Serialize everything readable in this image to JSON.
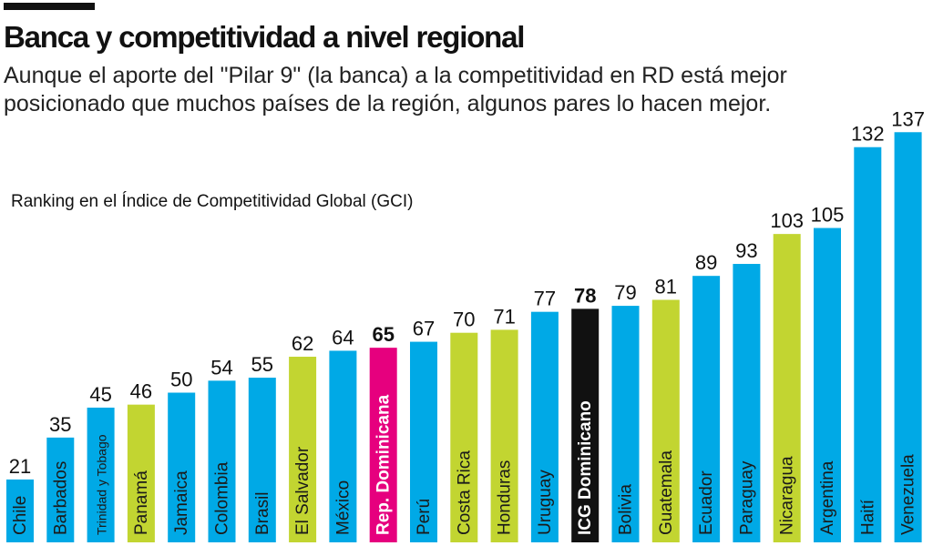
{
  "header": {
    "title": "Banca y competitividad a nivel regional",
    "subtitle": "Aunque el aporte del \"Pilar 9\" (la banca) a la competitividad en RD está mejor posicionado que muchos países de la región, algunos pares lo hacen mejor."
  },
  "colors": {
    "blue": "#00A9E6",
    "green": "#C2D531",
    "magenta": "#E6007E",
    "black": "#111111",
    "label_dark": "#1a1a1a",
    "label_light": "#ffffff"
  },
  "chart_data": {
    "type": "bar",
    "title": "Banca y competitividad a nivel regional",
    "ylabel": "Ranking en el Índice de Competitividad Global (GCI)",
    "xlabel": "",
    "ylim": [
      0,
      140
    ],
    "grid": false,
    "legend": "none",
    "categories": [
      "Chile",
      "Barbados",
      "Trinidad y Tobago",
      "Panamá",
      "Jamaica",
      "Colombia",
      "Brasil",
      "El Salvador",
      "México",
      "Rep. Dominicana",
      "Perú",
      "Costa Rica",
      "Honduras",
      "Uruguay",
      "ICG Dominicano",
      "Bolivia",
      "Guatemala",
      "Ecuador",
      "Paraguay",
      "Nicaragua",
      "Argentina",
      "Haití",
      "Venezuela"
    ],
    "values": [
      21,
      35,
      45,
      46,
      50,
      54,
      55,
      62,
      64,
      65,
      67,
      70,
      71,
      77,
      78,
      79,
      81,
      89,
      93,
      103,
      105,
      132,
      137
    ],
    "bar_colors": [
      "blue",
      "blue",
      "blue",
      "green",
      "blue",
      "blue",
      "blue",
      "green",
      "blue",
      "magenta",
      "blue",
      "green",
      "green",
      "blue",
      "black",
      "blue",
      "green",
      "blue",
      "blue",
      "green",
      "blue",
      "blue",
      "blue"
    ],
    "highlighted": [
      "Rep. Dominicana",
      "ICG Dominicano"
    ]
  }
}
